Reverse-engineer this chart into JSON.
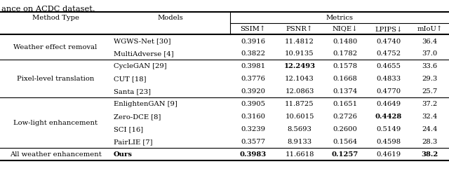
{
  "title_text": "ance on ACDC dataset.",
  "col_headers2": [
    "SSIM↑",
    "PSNR↑",
    "NIQE↓",
    "LPIPS↓",
    "mIoU↑"
  ],
  "groups": [
    {
      "group_name": "Weather effect removal",
      "rows": [
        {
          "model": "WGWS-Net [30]",
          "ssim": "0.3916",
          "psnr": "11.4812",
          "niqe": "0.1480",
          "lpips": "0.4740",
          "miou": "36.4",
          "bold": []
        },
        {
          "model": "MultiAdverse [4]",
          "ssim": "0.3822",
          "psnr": "10.9135",
          "niqe": "0.1782",
          "lpips": "0.4752",
          "miou": "37.0",
          "bold": []
        }
      ]
    },
    {
      "group_name": "Pixel-level translation",
      "rows": [
        {
          "model": "CycleGAN [29]",
          "ssim": "0.3981",
          "psnr": "12.2493",
          "niqe": "0.1578",
          "lpips": "0.4655",
          "miou": "33.6",
          "bold": [
            "psnr"
          ]
        },
        {
          "model": "CUT [18]",
          "ssim": "0.3776",
          "psnr": "12.1043",
          "niqe": "0.1668",
          "lpips": "0.4833",
          "miou": "29.3",
          "bold": []
        },
        {
          "model": "Santa [23]",
          "ssim": "0.3920",
          "psnr": "12.0863",
          "niqe": "0.1374",
          "lpips": "0.4770",
          "miou": "25.7",
          "bold": []
        }
      ]
    },
    {
      "group_name": "Low-light enhancement",
      "rows": [
        {
          "model": "EnlightenGAN [9]",
          "ssim": "0.3905",
          "psnr": "11.8725",
          "niqe": "0.1651",
          "lpips": "0.4649",
          "miou": "37.2",
          "bold": []
        },
        {
          "model": "Zero-DCE [8]",
          "ssim": "0.3160",
          "psnr": "10.6015",
          "niqe": "0.2726",
          "lpips": "0.4428",
          "miou": "32.4",
          "bold": [
            "lpips"
          ]
        },
        {
          "model": "SCI [16]",
          "ssim": "0.3239",
          "psnr": "8.5693",
          "niqe": "0.2600",
          "lpips": "0.5149",
          "miou": "24.4",
          "bold": []
        },
        {
          "model": "PairLIE [7]",
          "ssim": "0.3577",
          "psnr": "8.9133",
          "niqe": "0.1564",
          "lpips": "0.4598",
          "miou": "28.3",
          "bold": []
        }
      ]
    }
  ],
  "last_row": {
    "group_name": "All weather enhancement",
    "model": "Ours",
    "ssim": "0.3983",
    "psnr": "11.6618",
    "niqe": "0.1257",
    "lpips": "0.4619",
    "miou": "38.2",
    "bold": [
      "ssim",
      "niqe",
      "miou"
    ]
  },
  "fig_width": 6.4,
  "fig_height": 2.55,
  "font_size": 7.2
}
